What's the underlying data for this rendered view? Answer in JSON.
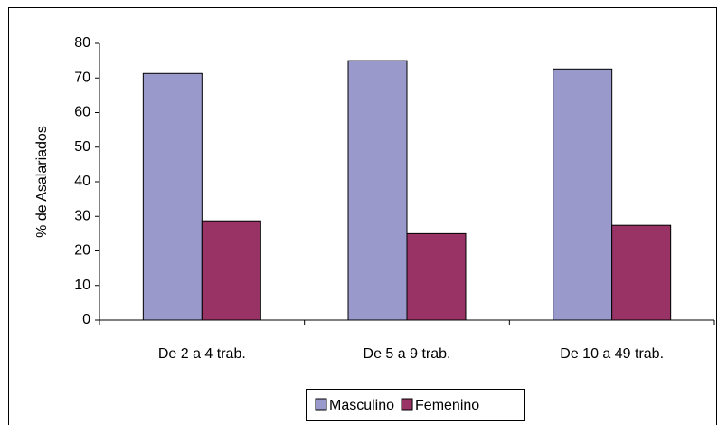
{
  "chart_data": {
    "type": "bar",
    "ylabel": "% de Asalariados",
    "categories": [
      "De 2 a 4 trab.",
      "De 5 a 9 trab.",
      "De 10 a 49 trab."
    ],
    "series": [
      {
        "name": "Masculino",
        "color": "#9999cc",
        "values": [
          71.3,
          75,
          72.6
        ]
      },
      {
        "name": "Femenino",
        "color": "#993366",
        "values": [
          28.7,
          25,
          27.4
        ]
      }
    ],
    "ylim": [
      0,
      80
    ],
    "yticks": [
      0,
      10,
      20,
      30,
      40,
      50,
      60,
      70,
      80
    ],
    "grid": false,
    "legend": "bottom"
  }
}
